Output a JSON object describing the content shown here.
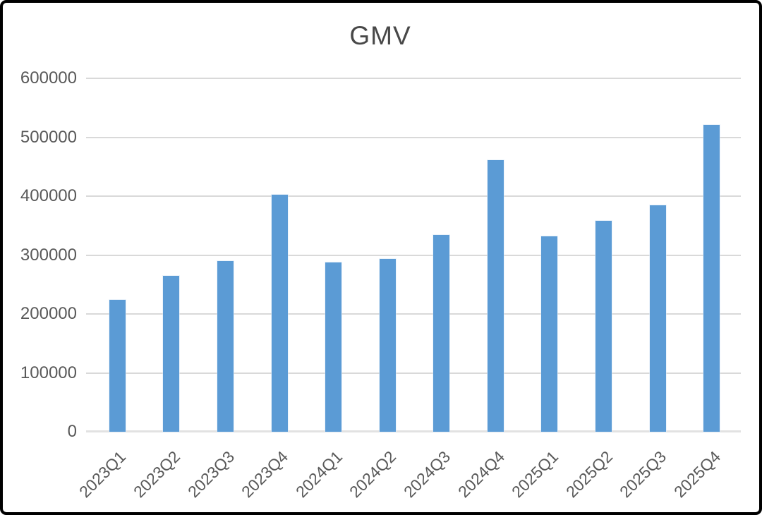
{
  "window": {
    "background_color": "#ffffff",
    "border_color": "#000000"
  },
  "chart_data": {
    "type": "bar",
    "title": "GMV",
    "categories": [
      "2023Q1",
      "2023Q2",
      "2023Q3",
      "2023Q4",
      "2024Q1",
      "2024Q2",
      "2024Q3",
      "2024Q4",
      "2025Q1",
      "2025Q2",
      "2025Q3",
      "2025Q4"
    ],
    "values": [
      224000,
      265000,
      290000,
      403000,
      288000,
      293000,
      334000,
      461000,
      332000,
      358000,
      385000,
      521000
    ],
    "xlabel": "",
    "ylabel": "",
    "ylim": [
      0,
      600000
    ],
    "ytick_interval": 100000,
    "ytick_labels": [
      "600000",
      "500000",
      "400000",
      "300000",
      "200000",
      "100000",
      "0"
    ],
    "grid": true,
    "legend": false,
    "legend_position": "none",
    "bar_color": "#5B9BD5",
    "gridline_color": "#d9d9d9",
    "axis_line_color": "#e2e2e2",
    "text_color": "#595959",
    "title_color": "#484848"
  }
}
